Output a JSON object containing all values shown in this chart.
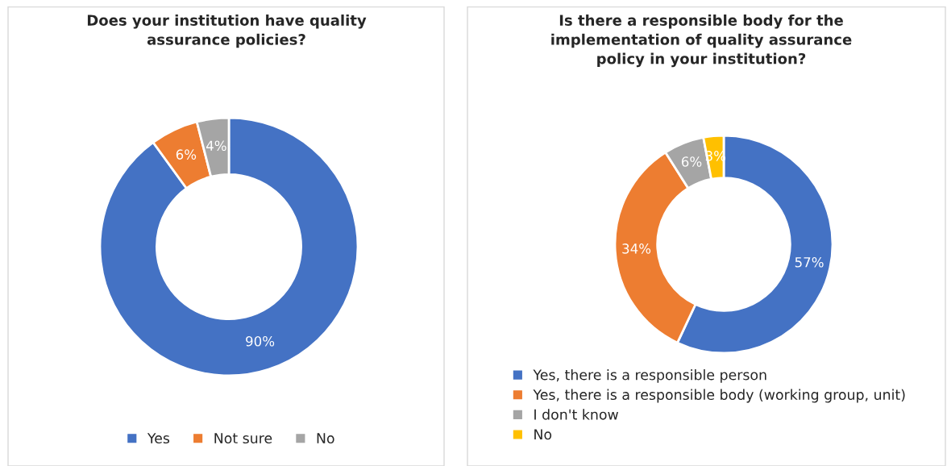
{
  "chart_data": [
    {
      "type": "donut",
      "title": "Does your institution have quality\nassurance policies?",
      "categories": [
        "Yes",
        "Not sure",
        "No"
      ],
      "values": [
        90,
        6,
        4
      ],
      "colors": [
        "#4472c4",
        "#ed7d31",
        "#a5a5a5"
      ],
      "value_labels": [
        "90%",
        "6%",
        "4%"
      ],
      "legend": "bottom"
    },
    {
      "type": "donut",
      "title": "Is there a responsible body for the\nimplementation of quality assurance\npolicy in your institution?",
      "categories": [
        "Yes, there is a responsible person",
        "Yes, there is a responsible body (working group, unit)",
        "I don't know",
        "No"
      ],
      "values": [
        57,
        34,
        6,
        3
      ],
      "colors": [
        "#4472c4",
        "#ed7d31",
        "#a5a5a5",
        "#ffc000"
      ],
      "value_labels": [
        "57%",
        "34%",
        "6%",
        "3%"
      ],
      "legend": "bottom left"
    }
  ]
}
